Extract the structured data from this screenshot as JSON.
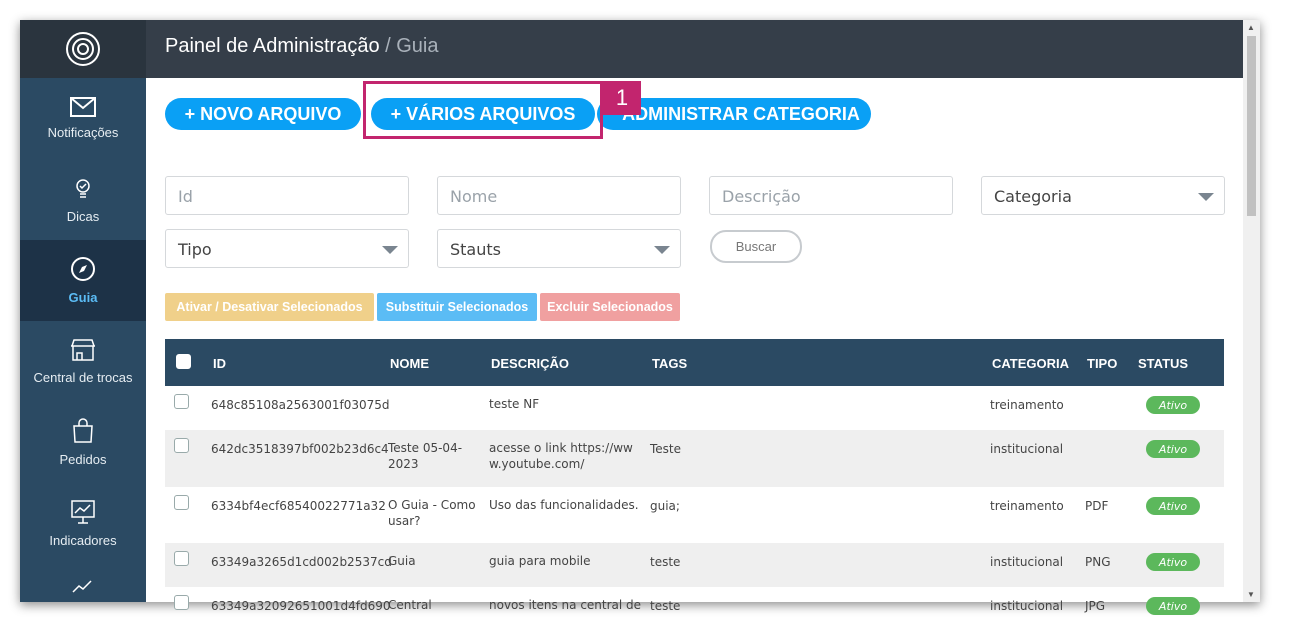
{
  "header": {
    "title": "Painel de Administração",
    "crumb": "/ Guia"
  },
  "sidebar": {
    "items": [
      {
        "label": "Notificações",
        "icon": "mail-icon"
      },
      {
        "label": "Dicas",
        "icon": "lightbulb-icon"
      },
      {
        "label": "Guia",
        "icon": "compass-icon",
        "active": true
      },
      {
        "label": "Central de trocas",
        "icon": "store-icon"
      },
      {
        "label": "Pedidos",
        "icon": "shopping-bag-icon"
      },
      {
        "label": "Indicadores",
        "icon": "chart-board-icon"
      }
    ]
  },
  "actions": {
    "new_file": "+ NOVO ARQUIVO",
    "multiple_files": "+ VÁRIOS ARQUIVOS",
    "manage_category": "ADMINISTRAR CATEGORIA",
    "callout": "1"
  },
  "filters": {
    "id": "Id",
    "name": "Nome",
    "description": "Descrição",
    "category": "Categoria",
    "type": "Tipo",
    "status": "Stauts",
    "search": "Buscar"
  },
  "bulk": {
    "toggle": "Ativar / Desativar Selecionados",
    "replace": "Substituir Selecionados",
    "delete": "Excluir Selecionados"
  },
  "colors": {
    "primary": "#0aa0f5",
    "highlight": "#c2256e",
    "toggle": "#f0d08a",
    "replace": "#5bbcf5",
    "delete": "#f0a0a0",
    "active": "#5cb85c"
  },
  "table": {
    "headers": [
      "ID",
      "NOME",
      "DESCRIÇÃO",
      "TAGS",
      "CATEGORIA",
      "TIPO",
      "STATUS"
    ],
    "rows": [
      {
        "id": "648c85108a2563001f03075d",
        "name": "",
        "desc": "teste NF",
        "tags": "",
        "cat": "treinamento",
        "type": "",
        "status": "Ativo"
      },
      {
        "id": "642dc3518397bf002b23d6c4",
        "name": "Teste 05-04-2023",
        "desc": "acesse o link https://www.youtube.com/",
        "tags": "Teste",
        "cat": "institucional",
        "type": "",
        "status": "Ativo"
      },
      {
        "id": "6334bf4ecf68540022771a32",
        "name": "O Guia - Como usar?",
        "desc": "Uso das funcionalidades.",
        "tags": "guia;",
        "cat": "treinamento",
        "type": "PDF",
        "status": "Ativo"
      },
      {
        "id": "63349a3265d1cd002b2537cd",
        "name": "Guia",
        "desc": "guia para mobile",
        "tags": "teste",
        "cat": "institucional",
        "type": "PNG",
        "status": "Ativo"
      },
      {
        "id": "63349a32092651001d4fd690",
        "name": "Central",
        "desc": "novos itens na central de",
        "tags": "teste",
        "cat": "institucional",
        "type": "JPG",
        "status": "Ativo"
      }
    ]
  }
}
